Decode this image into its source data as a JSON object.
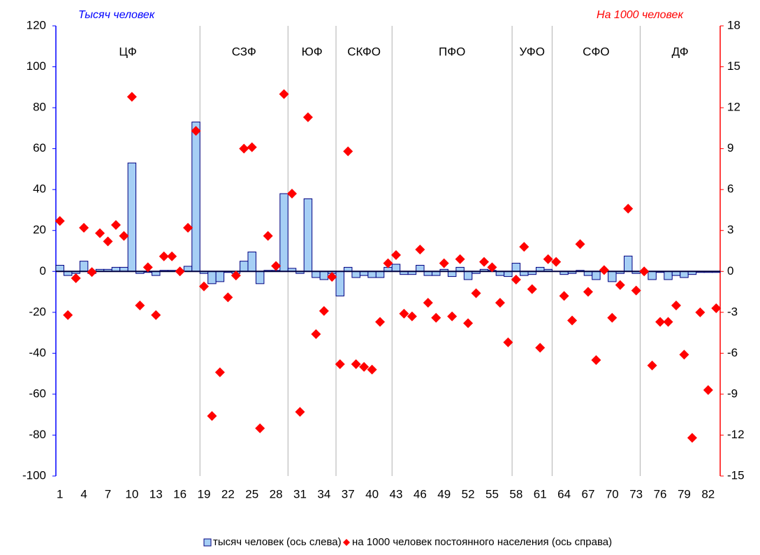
{
  "chart_data": {
    "type": "combo",
    "y_title": "Тысяч человек",
    "y2_title": "На 1000 человек",
    "categories": [
      "1",
      null,
      null,
      "4",
      null,
      null,
      "7",
      null,
      null,
      "10",
      null,
      null,
      "13",
      null,
      null,
      "16",
      null,
      null,
      "19",
      null,
      null,
      "22",
      null,
      null,
      "25",
      null,
      null,
      "28",
      null,
      null,
      "31",
      null,
      null,
      "34",
      null,
      null,
      "37",
      null,
      null,
      "40",
      null,
      null,
      "43",
      null,
      null,
      "46",
      null,
      null,
      "49",
      null,
      null,
      "52",
      null,
      null,
      "55",
      null,
      null,
      "58",
      null,
      null,
      "61",
      null,
      null,
      "64",
      null,
      null,
      "67",
      null,
      null,
      "70",
      null,
      null,
      "73",
      null,
      null,
      "76",
      null,
      null,
      "79",
      null,
      null,
      "82",
      null
    ],
    "regions": [
      {
        "label": "ЦФ",
        "last": 18
      },
      {
        "label": "СЗФ",
        "last": 29
      },
      {
        "label": "ЮФ",
        "last": 35
      },
      {
        "label": "СКФО",
        "last": 42
      },
      {
        "label": "ПФО",
        "last": 57
      },
      {
        "label": "УФО",
        "last": 62
      },
      {
        "label": "СФО",
        "last": 73
      },
      {
        "label": "ДФ",
        "last": 83
      }
    ],
    "series": [
      {
        "name": "тысяч человек (ось слева)",
        "type": "bar",
        "axis": "y",
        "color": "#a6cff5",
        "edge": "#000080",
        "values": [
          3,
          -2,
          -1,
          5,
          -1,
          1,
          1,
          2,
          2,
          53,
          -1,
          -0.5,
          -2,
          0.5,
          0.5,
          0.5,
          2.5,
          73,
          -1,
          -6,
          -5,
          -0.5,
          -1,
          5,
          9.5,
          -6,
          0.5,
          0.5,
          38,
          1.5,
          -1,
          35.5,
          -3,
          -4,
          -1,
          -12,
          2,
          -3,
          -2,
          -3,
          -3,
          2,
          3.5,
          -1.5,
          -1.5,
          3,
          -2,
          -2,
          1,
          -2.5,
          2,
          -4,
          -1,
          1,
          0.5,
          -2,
          -2.5,
          4,
          -2,
          -1.5,
          2,
          1,
          0,
          -1.5,
          -1,
          0.5,
          -2,
          -4,
          0.5,
          -5,
          -1,
          7.5,
          -1,
          0,
          -4,
          -0.5,
          -4,
          -2,
          -3,
          -1.5,
          -0.5,
          -0.5,
          -0.5
        ]
      },
      {
        "name": "на 1000 человек постоянного населения (ось справа)",
        "type": "scatter",
        "axis": "y2",
        "color": "#ff0000",
        "values": [
          3.7,
          -3.2,
          -0.5,
          3.2,
          -0.05,
          2.8,
          2.2,
          3.4,
          2.6,
          12.8,
          -2.5,
          0.3,
          -3.2,
          1.1,
          1.1,
          0,
          3.2,
          10.3,
          -1.1,
          -10.6,
          -7.4,
          -1.9,
          -0.3,
          9.0,
          9.1,
          -11.5,
          2.6,
          0.4,
          13.0,
          5.7,
          -10.3,
          11.3,
          -4.6,
          -2.9,
          -0.4,
          -6.8,
          8.8,
          -6.8,
          -7.0,
          -7.2,
          -3.7,
          0.6,
          1.2,
          -3.1,
          -3.3,
          1.6,
          -2.3,
          -3.4,
          0.6,
          -3.3,
          0.9,
          -3.8,
          -1.6,
          0.7,
          0.3,
          -2.3,
          -5.2,
          -0.6,
          1.8,
          -1.3,
          -5.6,
          0.9,
          0.7,
          -1.8,
          -3.6,
          2.0,
          -1.5,
          -6.5,
          0.1,
          -3.4,
          -1.0,
          4.6,
          -1.4,
          0,
          -6.9,
          -3.7,
          -3.7,
          -2.5,
          -6.1,
          -12.2,
          -3.0,
          -8.7,
          -2.7
        ]
      }
    ],
    "ylim": [
      -100,
      120
    ],
    "yticks": [
      -100,
      -80,
      -60,
      -40,
      -20,
      0,
      20,
      40,
      60,
      80,
      100,
      120
    ],
    "y2lim": [
      -15,
      18
    ],
    "y2ticks": [
      -15,
      -12,
      -9,
      -6,
      -3,
      0,
      3,
      6,
      9,
      12,
      15,
      18
    ],
    "y_color": "#0000ff",
    "y2_color": "#ff0000"
  }
}
